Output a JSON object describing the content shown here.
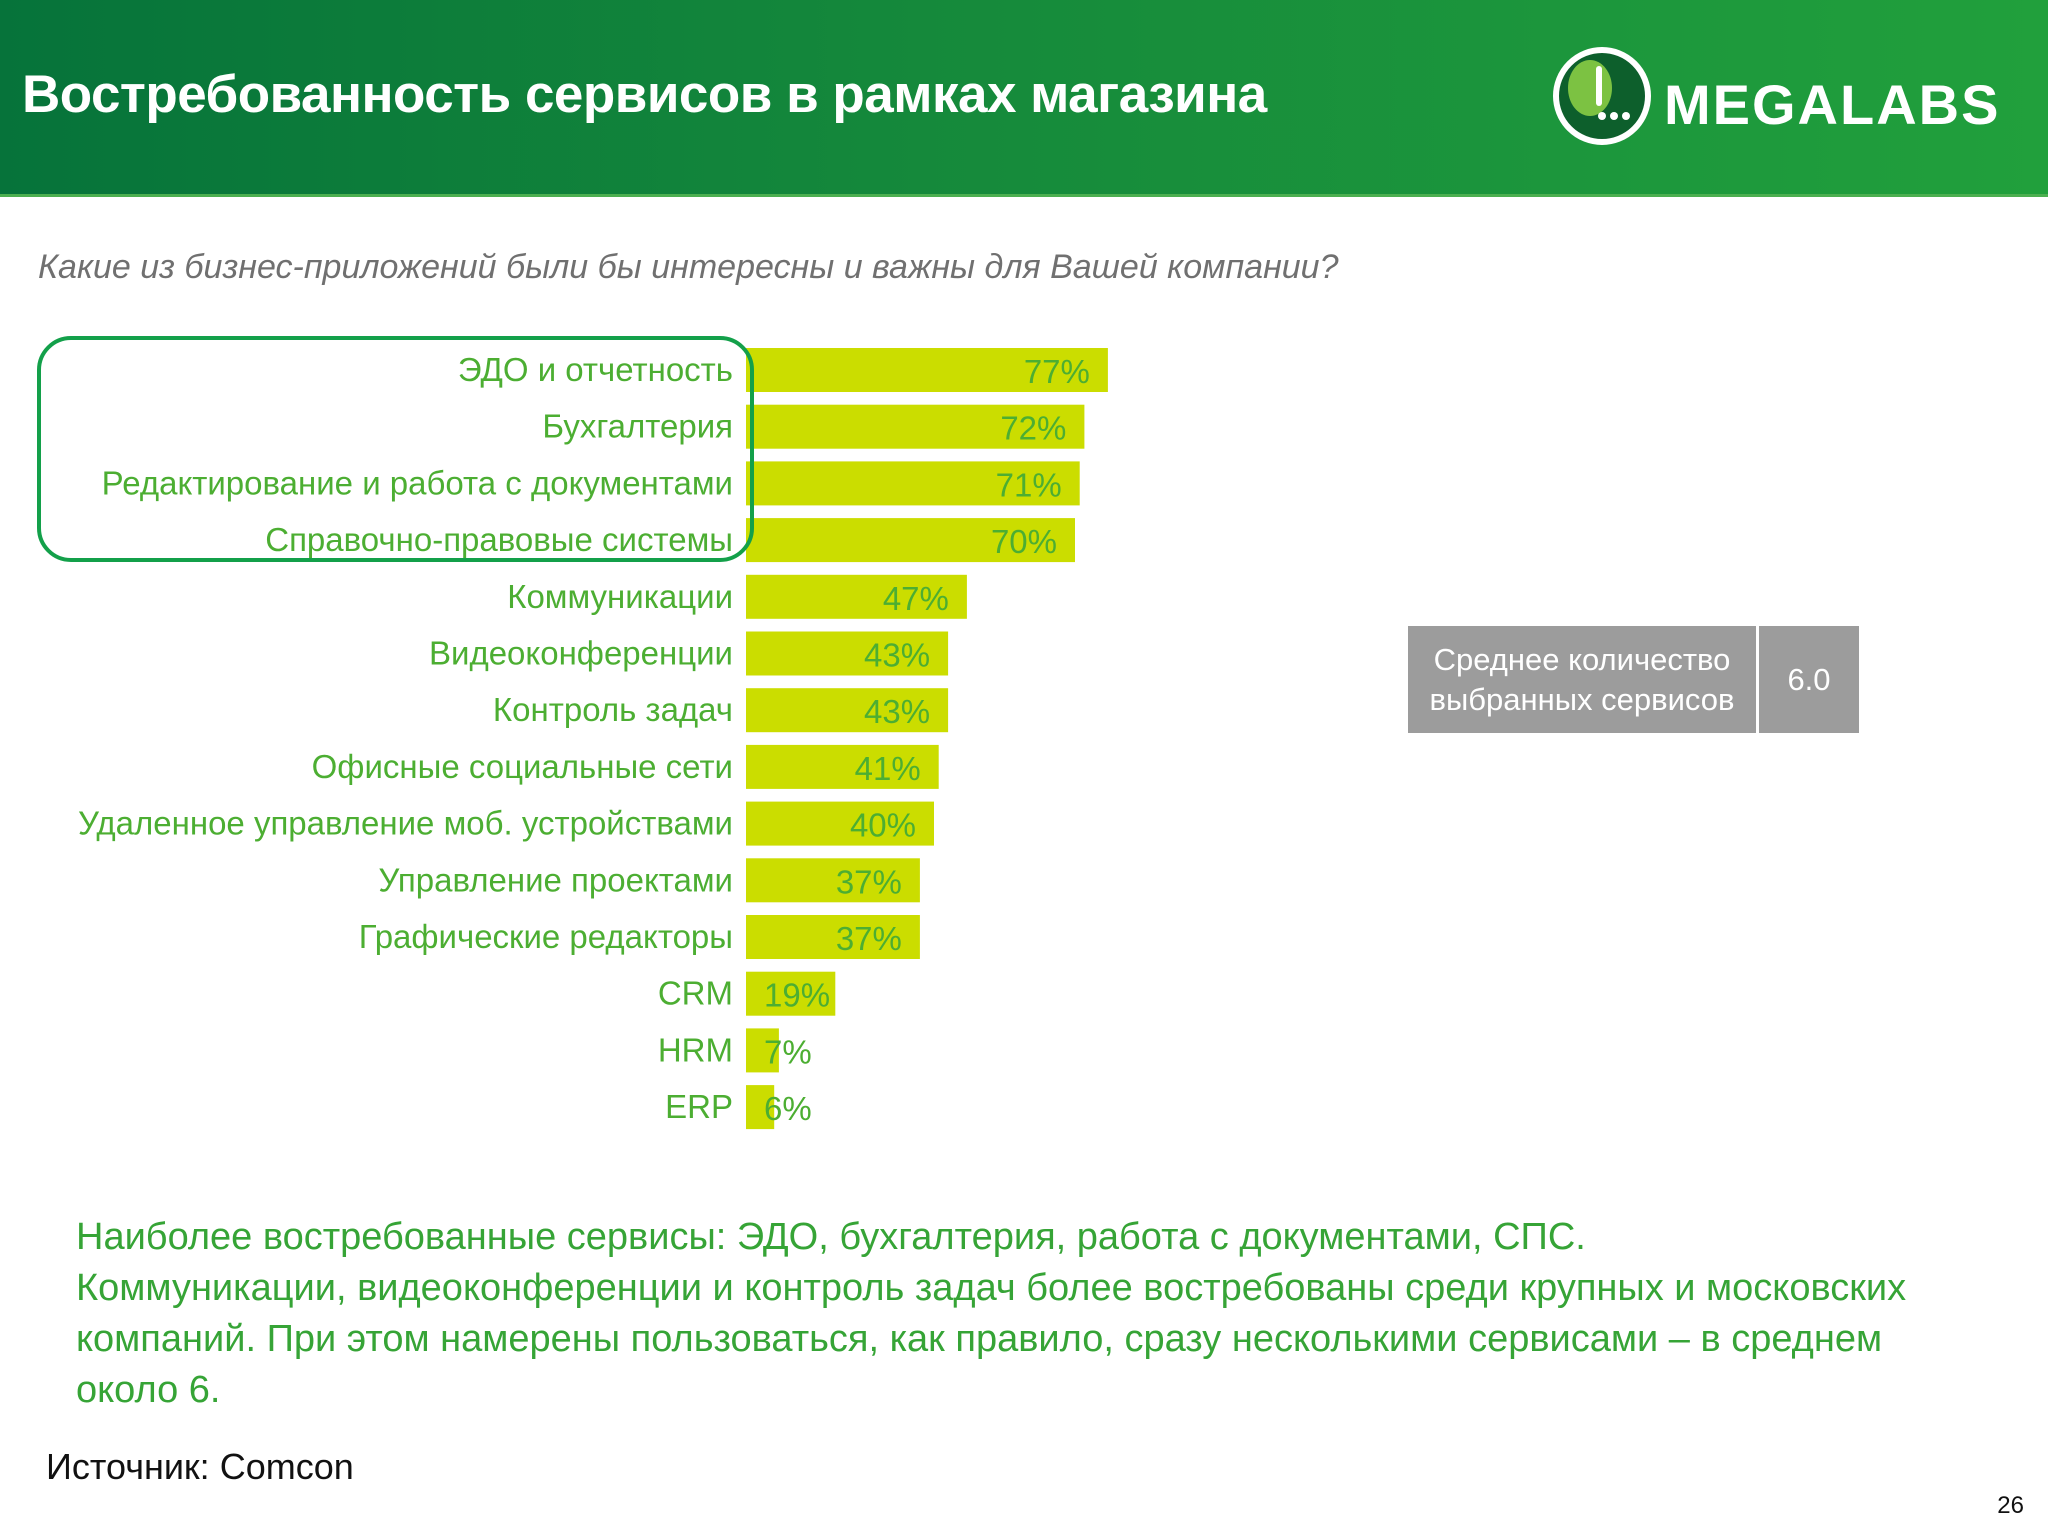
{
  "header": {
    "title": "Востребованность сервисов в рамках магазина",
    "logo_text": "MEGALABS"
  },
  "question": "Какие из бизнес-приложений были бы интересны и важны для Вашей компании?",
  "chart_data": {
    "type": "bar",
    "orientation": "horizontal",
    "title": "Какие из бизнес-приложений были бы интересны и важны для Вашей компании?",
    "categories": [
      "ЭДО и отчетность",
      "Бухгалтерия",
      "Редактирование и работа с документами",
      "Справочно-правовые системы",
      "Коммуникации",
      "Видеоконференции",
      "Контроль задач",
      "Офисные социальные сети",
      "Удаленное управление моб. устройствами",
      "Управление проектами",
      "Графические редакторы",
      "CRM",
      "HRM",
      "ERP"
    ],
    "values": [
      77,
      72,
      71,
      70,
      47,
      43,
      43,
      41,
      40,
      37,
      37,
      19,
      7,
      6
    ],
    "value_labels": [
      "77%",
      "72%",
      "71%",
      "70%",
      "47%",
      "43%",
      "43%",
      "41%",
      "40%",
      "37%",
      "37%",
      "19%",
      "7%",
      "6%"
    ],
    "unit": "%",
    "xlim": [
      0,
      100
    ],
    "highlighted_categories": [
      "ЭДО и отчетность",
      "Бухгалтерия",
      "Редактирование и работа с документами",
      "Справочно-правовые системы"
    ],
    "colors": {
      "bar": "#cbdd00",
      "labels": "#4cae32",
      "highlight": "#13a04a"
    },
    "xlabel": "",
    "ylabel": "",
    "grid": false,
    "legend": "none"
  },
  "summary": {
    "label_line1": "Среднее количество",
    "label_line2": "выбранных сервисов",
    "value": "6.0"
  },
  "conclusion": {
    "line1": "Наиболее востребованные сервисы: ЭДО, бухгалтерия, работа с документами, СПС.",
    "line2": "Коммуникации, видеоконференции и контроль задач более востребованы среди крупных и московских компаний. При этом намерены пользоваться, как правило, сразу несколькими сервисами – в среднем около 6."
  },
  "source": "Источник: Comcon",
  "page_number": "26",
  "colors": {
    "header_dark": "#06733a",
    "header_light": "#21a03c",
    "summary_bg": "#9c9c9c",
    "text_green": "#36a436"
  }
}
